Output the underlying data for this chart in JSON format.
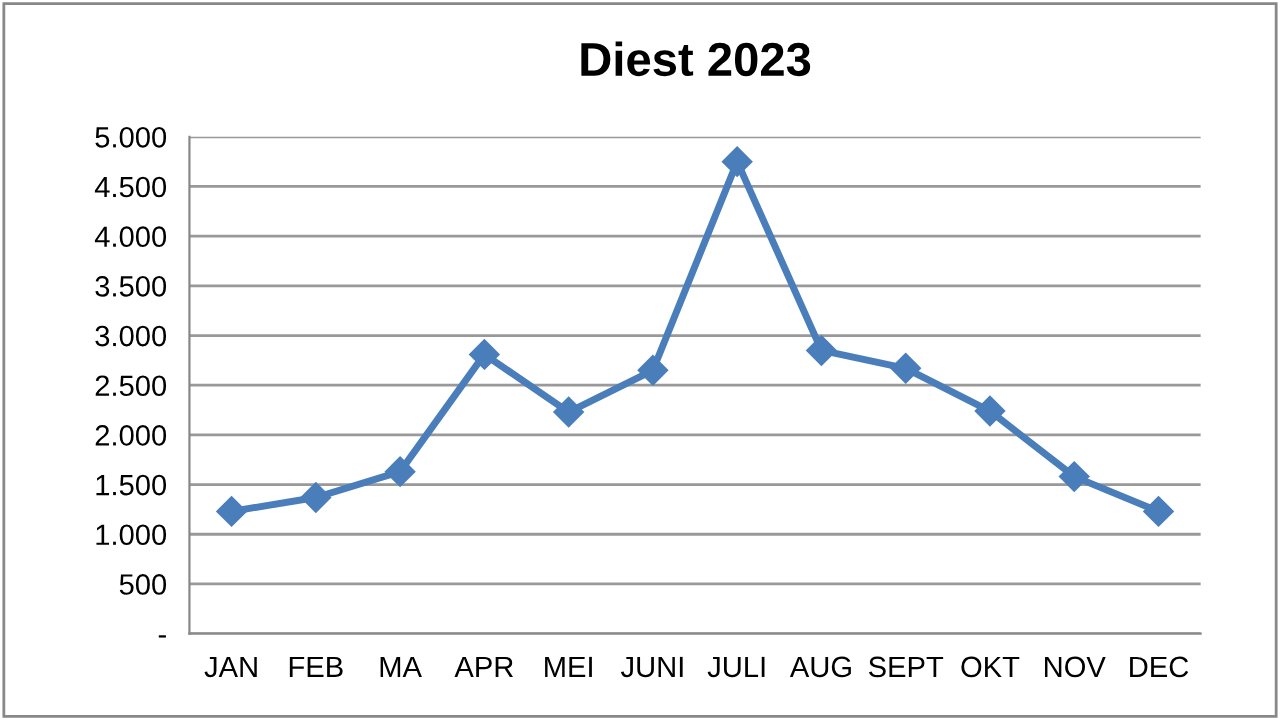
{
  "chart_data": {
    "type": "line",
    "title": "Diest 2023",
    "categories": [
      "JAN",
      "FEB",
      "MA",
      "APR",
      "MEI",
      "JUNI",
      "JULI",
      "AUG",
      "SEPT",
      "OKT",
      "NOV",
      "DEC"
    ],
    "series": [
      {
        "color": "#4a7ebb",
        "values": [
          1230,
          1370,
          1630,
          2810,
          2230,
          2650,
          4750,
          2850,
          2670,
          2240,
          1580,
          1230
        ]
      }
    ],
    "ylim": [
      0,
      5000
    ],
    "yticks": [
      {
        "value": 0,
        "label": "-"
      },
      {
        "value": 500,
        "label": "500"
      },
      {
        "value": 1000,
        "label": "1.000"
      },
      {
        "value": 1500,
        "label": "1.500"
      },
      {
        "value": 2000,
        "label": "2.000"
      },
      {
        "value": 2500,
        "label": "2.500"
      },
      {
        "value": 3000,
        "label": "3.000"
      },
      {
        "value": 3500,
        "label": "3.500"
      },
      {
        "value": 4000,
        "label": "4.000"
      },
      {
        "value": 4500,
        "label": "4.500"
      },
      {
        "value": 5000,
        "label": "5.000"
      }
    ],
    "grid": "y",
    "marker": "diamond",
    "line_style": "solid"
  }
}
